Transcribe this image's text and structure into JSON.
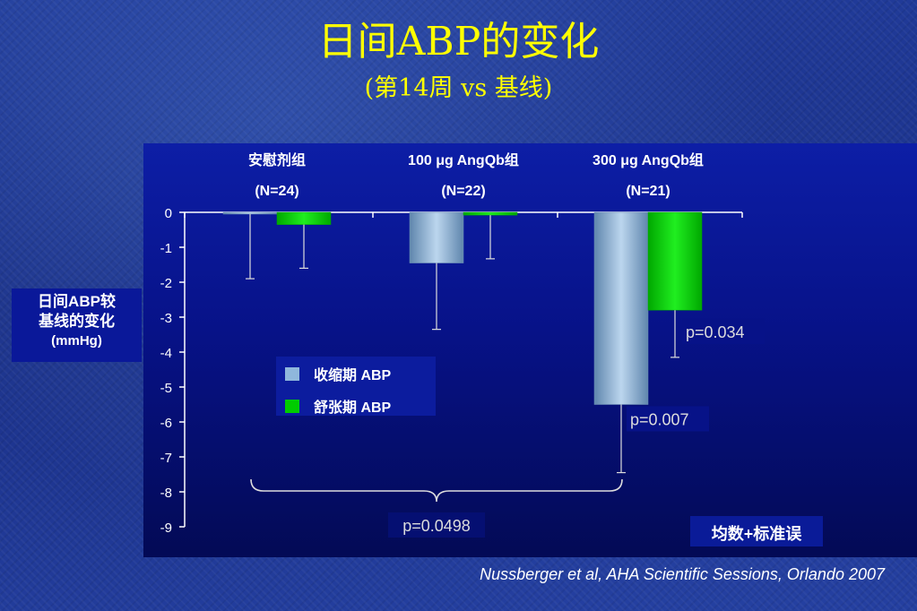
{
  "title": "日间ABP的变化",
  "subtitle": "(第14周 vs 基线)",
  "citation": "Nussberger et al, AHA Scientific Sessions, Orlando 2007",
  "error_note": "均数+标准误",
  "colors": {
    "systolic": "#8fb7dc",
    "diastolic": "#00cc00",
    "title": "#ffff00"
  },
  "chart_data": {
    "type": "bar",
    "ylabel": "日间ABP较基线的变化",
    "yunit": "(mmHg)",
    "ylim": [
      -9,
      0
    ],
    "yticks": [
      "0",
      "-1",
      "-2",
      "-3",
      "-4",
      "-5",
      "-6",
      "-7",
      "-8",
      "-9"
    ],
    "grid": false,
    "legend_placement": "center-left",
    "categories": [
      {
        "name": "安慰剂组",
        "n": "(N=24)"
      },
      {
        "name": "100 μg AngQb组",
        "n": "(N=22)"
      },
      {
        "name": "300 μg AngQb组",
        "n": "(N=21)"
      }
    ],
    "series": [
      {
        "name": "收缩期 ABP",
        "values": [
          -0.05,
          -1.45,
          -5.5
        ],
        "error": [
          1.85,
          1.9,
          1.95
        ]
      },
      {
        "name": "舒张期 ABP",
        "values": [
          -0.35,
          -0.08,
          -2.8
        ],
        "error": [
          1.25,
          1.25,
          1.35
        ]
      }
    ],
    "annotations": [
      {
        "text": "p=0.034",
        "category": 2,
        "series": 1
      },
      {
        "text": "p=0.007",
        "category": 2,
        "series": 0
      },
      {
        "text": "p=0.0498",
        "span": [
          0,
          2
        ]
      }
    ]
  }
}
